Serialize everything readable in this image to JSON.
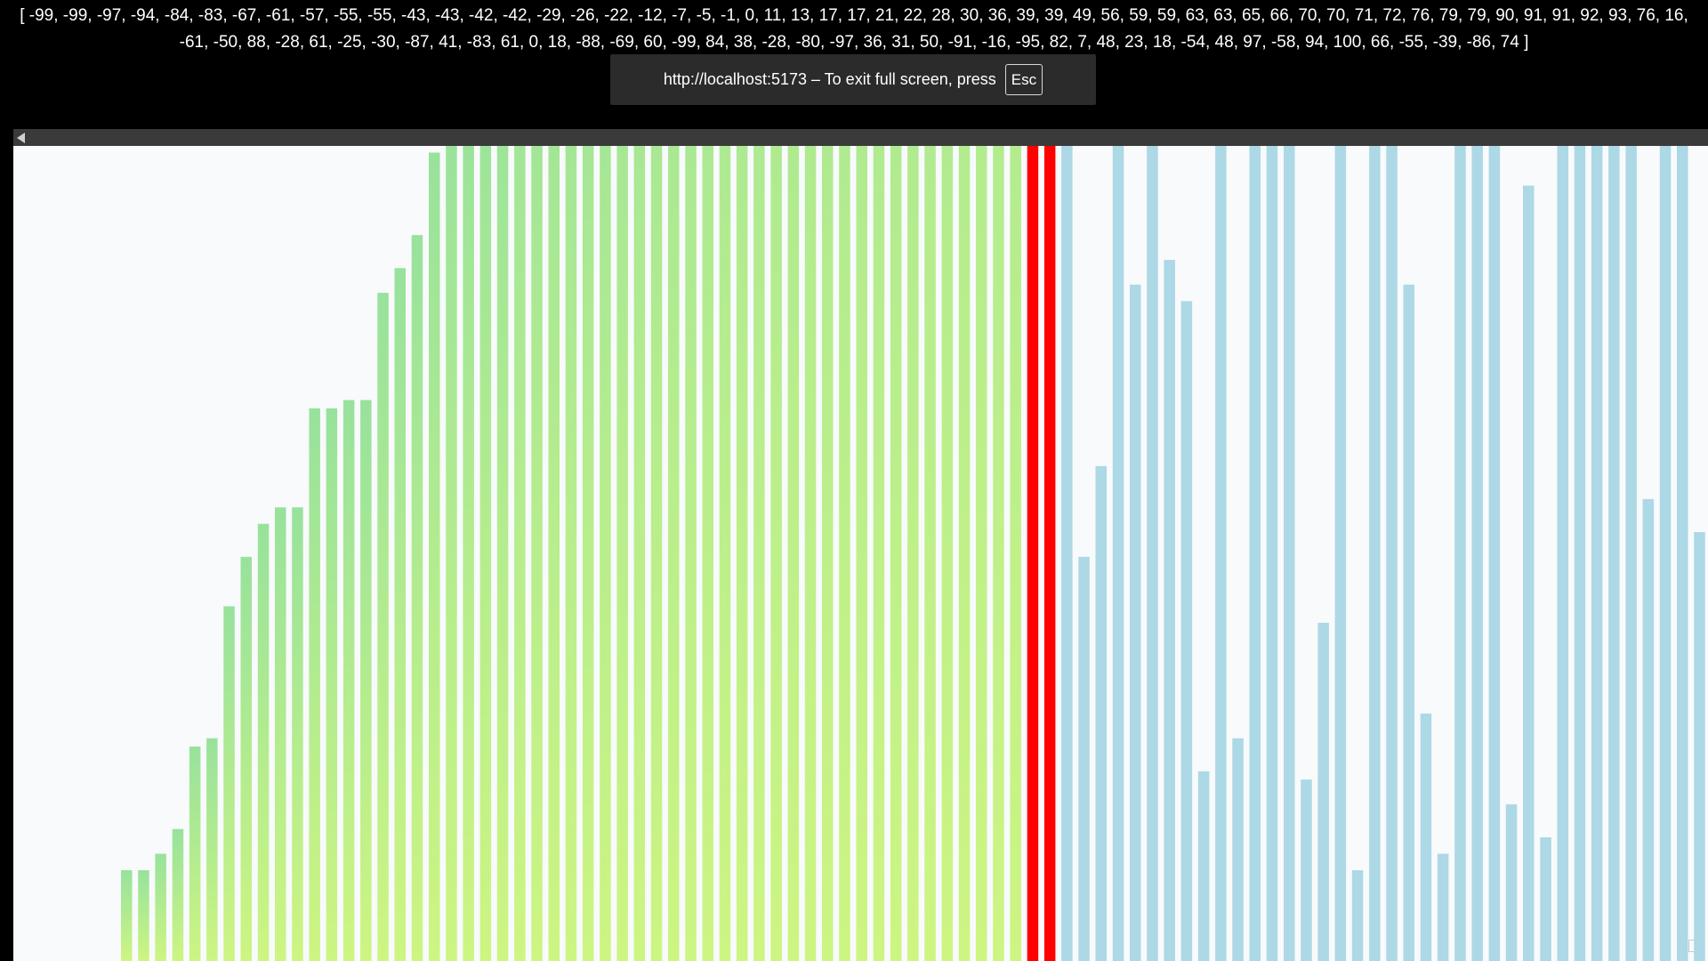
{
  "array_text": "[ -99, -99, -97, -94, -84, -83, -67, -61, -57, -55, -55, -43, -43, -42, -42, -29, -26, -22, -12, -7, -5, -1, 0, 11, 13, 17, 17, 21, 22, 28, 30, 36, 39, 39, 49, 56, 59, 59, 63, 63, 65, 66, 70, 70, 71, 72, 76, 79, 79, 90, 91, 91, 92, 93, 76, 16, -61, -50, 88, -28, 61, -25, -30, -87, 41, -83, 61, 0, 18, -88, -69, 60, -99, 84, 38, -28, -80, -97, 36, 31, 50, -91, -16, -95, 82, 7, 48, 23, 18, -54, 48, 97, -58, 94, 100, 66, -55, -39, -86, 74 ]",
  "fullscreen_notice": {
    "message": "http://localhost:5173 – To exit full screen, press",
    "key": "Esc"
  },
  "colors": {
    "sorted_top": "#98e29c",
    "sorted_bottom": "#cdf582",
    "active": "#ff0000",
    "unsorted": "#add8e6",
    "background": "#f8fafc"
  },
  "chart_data": {
    "type": "bar",
    "values": [
      -99,
      -99,
      -97,
      -94,
      -84,
      -83,
      -67,
      -61,
      -57,
      -55,
      -55,
      -43,
      -43,
      -42,
      -42,
      -29,
      -26,
      -22,
      -12,
      -7,
      -5,
      -1,
      0,
      11,
      13,
      17,
      17,
      21,
      22,
      28,
      30,
      36,
      39,
      39,
      49,
      56,
      59,
      59,
      63,
      63,
      65,
      66,
      70,
      70,
      71,
      72,
      76,
      79,
      79,
      90,
      91,
      91,
      92,
      93,
      76,
      16,
      -61,
      -50,
      88,
      -28,
      61,
      -25,
      -30,
      -87,
      41,
      -83,
      61,
      0,
      18,
      -88,
      -69,
      60,
      -99,
      84,
      38,
      -28,
      -80,
      -97,
      36,
      31,
      50,
      -91,
      -16,
      -95,
      82,
      7,
      48,
      23,
      18,
      -54,
      48,
      97,
      -58,
      94,
      100,
      66,
      -55,
      -39,
      -86,
      74
    ],
    "ylim": [
      -100,
      100
    ],
    "sorted_count": 54,
    "active_indices": [
      53,
      54
    ]
  }
}
